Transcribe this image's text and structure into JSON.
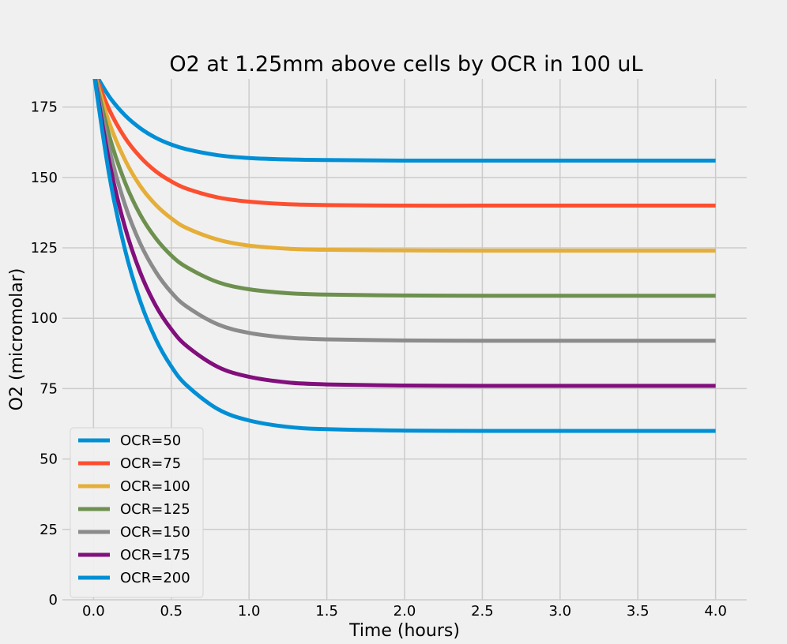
{
  "chart_data": {
    "type": "line",
    "title": "O2 at 1.25mm above cells by OCR in 100 uL",
    "xlabel": "Time (hours)",
    "ylabel": "O2 (micromolar)",
    "xlim": [
      -0.2,
      4.2
    ],
    "ylim": [
      0,
      185
    ],
    "xticks": [
      0.0,
      0.5,
      1.0,
      1.5,
      2.0,
      2.5,
      3.0,
      3.5,
      4.0
    ],
    "xtick_labels": [
      "0.0",
      "0.5",
      "1.0",
      "1.5",
      "2.0",
      "2.5",
      "3.0",
      "3.5",
      "4.0"
    ],
    "yticks": [
      0,
      25,
      50,
      75,
      100,
      125,
      150,
      175
    ],
    "ytick_labels": [
      "0",
      "25",
      "50",
      "75",
      "100",
      "125",
      "150",
      "175"
    ],
    "grid": true,
    "legend_position": "bottom-left",
    "x": [
      0.0,
      0.1,
      0.2,
      0.3,
      0.4,
      0.5,
      0.6,
      0.8,
      1.0,
      1.25,
      1.5,
      2.0,
      2.5,
      3.0,
      3.5,
      4.0
    ],
    "series": [
      {
        "name": "OCR=50",
        "color": "#008fd5",
        "values": [
          188.0,
          178.8,
          172.2,
          167.5,
          164.1,
          161.7,
          160.0,
          157.9,
          156.9,
          156.4,
          156.2,
          156.0,
          156.0,
          156.0,
          156.0,
          156.0
        ]
      },
      {
        "name": "OCR=75",
        "color": "#fc4f30",
        "values": [
          188.0,
          174.2,
          164.3,
          157.3,
          152.2,
          148.6,
          146.0,
          142.9,
          141.4,
          140.5,
          140.2,
          140.0,
          140.0,
          140.0,
          140.0,
          140.0
        ]
      },
      {
        "name": "OCR=100",
        "color": "#e5ae38",
        "values": [
          188.0,
          169.6,
          156.5,
          147.0,
          140.3,
          135.5,
          132.0,
          127.9,
          125.8,
          124.7,
          124.3,
          124.1,
          124.0,
          124.0,
          124.0,
          124.0
        ]
      },
      {
        "name": "OCR=125",
        "color": "#6d904f",
        "values": [
          188.0,
          165.0,
          148.6,
          136.8,
          128.4,
          122.3,
          118.1,
          112.8,
          110.3,
          108.9,
          108.4,
          108.1,
          108.0,
          108.0,
          108.0,
          108.0
        ]
      },
      {
        "name": "OCR=150",
        "color": "#8b8b8b",
        "values": [
          188.0,
          160.4,
          140.7,
          126.6,
          116.5,
          109.2,
          104.1,
          97.8,
          94.8,
          93.1,
          92.5,
          92.1,
          92.0,
          92.0,
          92.0,
          92.0
        ]
      },
      {
        "name": "OCR=175",
        "color": "#810f7c",
        "values": [
          188.0,
          155.8,
          132.8,
          116.3,
          104.5,
          96.1,
          90.1,
          82.7,
          79.2,
          77.2,
          76.5,
          76.1,
          76.0,
          76.0,
          76.0,
          76.0
        ]
      },
      {
        "name": "OCR=200",
        "color": "#008fd5",
        "values": [
          188.0,
          151.2,
          124.9,
          106.1,
          92.6,
          82.9,
          76.1,
          67.7,
          63.7,
          61.4,
          60.6,
          60.1,
          60.0,
          60.0,
          60.0,
          60.0
        ]
      }
    ]
  }
}
